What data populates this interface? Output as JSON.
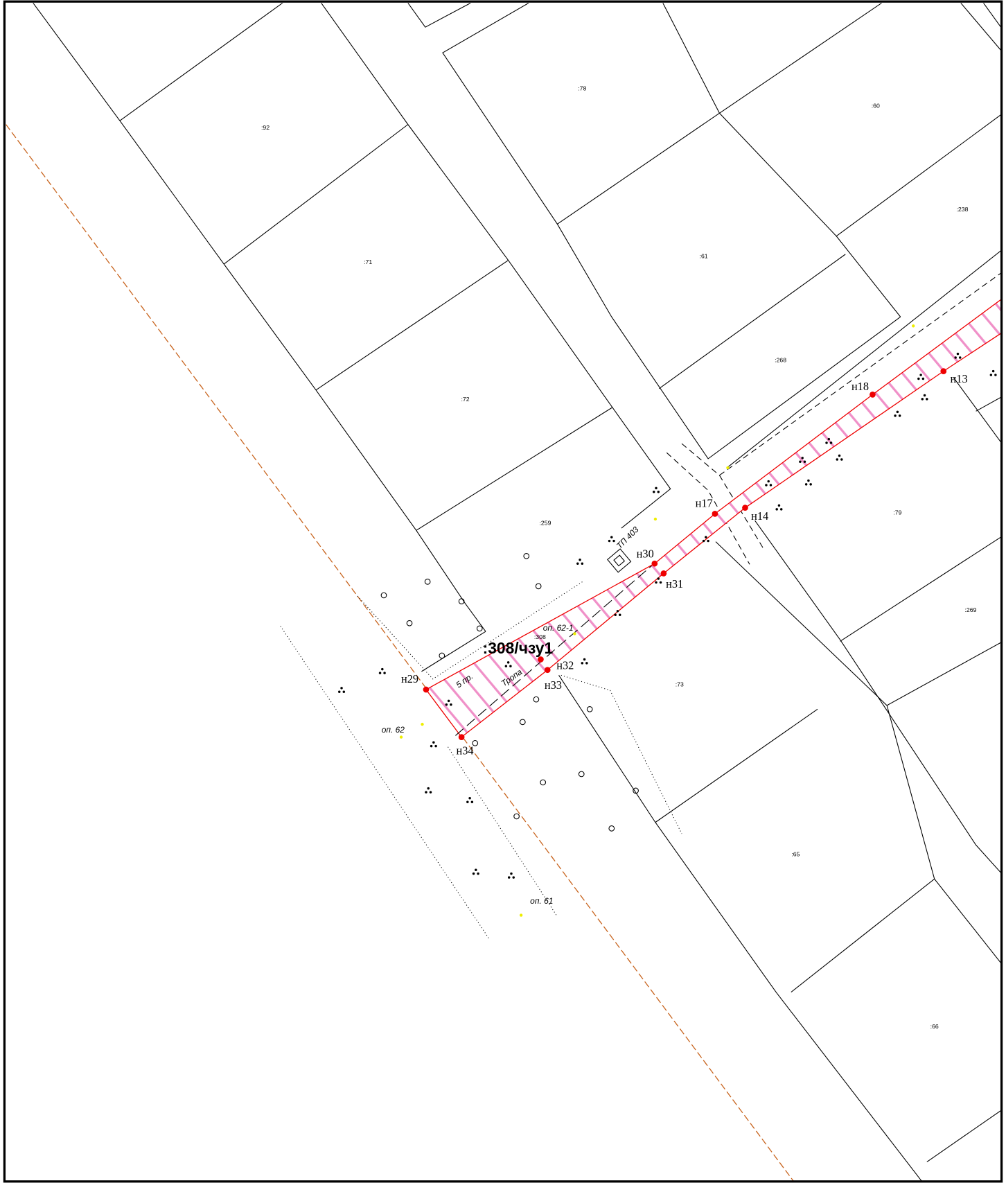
{
  "parcels": [
    ":92",
    ":78",
    ":60",
    ":71",
    ":61",
    ":238",
    ":72",
    ":268",
    ":259",
    ":79",
    ":269",
    ":73",
    ":65",
    ":66",
    ":308"
  ],
  "points": [
    "н13",
    "н14",
    "н17",
    "н18",
    "н29",
    "н30",
    "н31",
    "н32",
    "н33",
    "н34"
  ],
  "zone_label": ":308/чзу1",
  "annotations": [
    "оп. 62-1",
    "оп. 62",
    "оп. 61",
    "ТП 403",
    "5 пр.",
    "Тропа"
  ]
}
